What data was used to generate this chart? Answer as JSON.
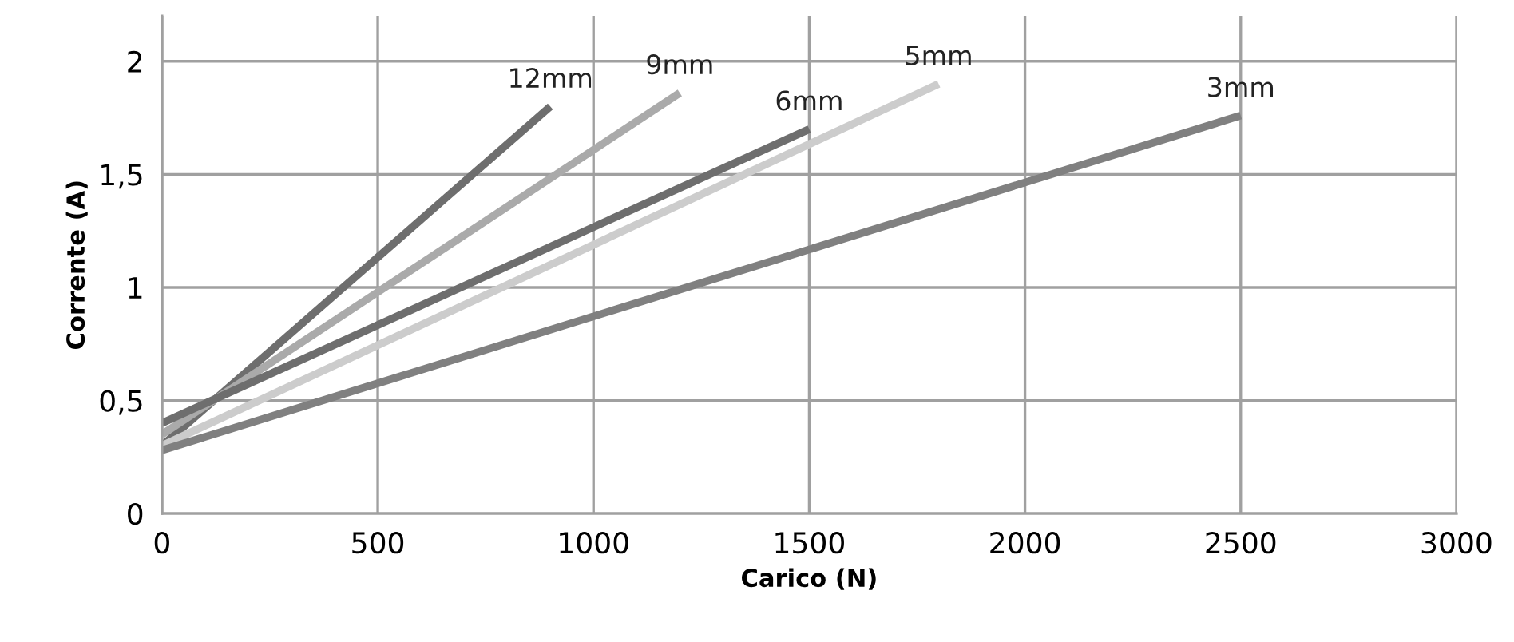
{
  "chart_data": {
    "type": "line",
    "xlabel": "Carico (N)",
    "ylabel": "Corrente (A)",
    "xlim": [
      0,
      3000
    ],
    "ylim": [
      0,
      2.2
    ],
    "xticks": [
      0,
      500,
      1000,
      1500,
      2000,
      2500,
      3000
    ],
    "yticks": [
      0,
      {
        "value": 0.5,
        "label": "0,5"
      },
      1,
      {
        "value": 1.5,
        "label": "1,5"
      },
      2
    ],
    "grid": true,
    "legend": false,
    "marker": "none",
    "line_style": "solid",
    "series": [
      {
        "name": "12mm",
        "color": "#6e6e6e",
        "x": [
          0,
          900
        ],
        "values": [
          0.3,
          1.8
        ]
      },
      {
        "name": "9mm",
        "color": "#aaaaaa",
        "x": [
          0,
          1200
        ],
        "values": [
          0.35,
          1.86
        ]
      },
      {
        "name": "6mm",
        "color": "#6e6e6e",
        "x": [
          0,
          1500
        ],
        "values": [
          0.4,
          1.7
        ]
      },
      {
        "name": "5mm",
        "color": "#cccccc",
        "x": [
          0,
          1800
        ],
        "values": [
          0.3,
          1.9
        ]
      },
      {
        "name": "3mm",
        "color": "#808080",
        "x": [
          0,
          2500
        ],
        "values": [
          0.28,
          1.76
        ]
      }
    ]
  }
}
